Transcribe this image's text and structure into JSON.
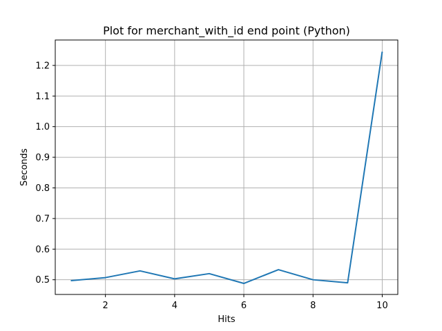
{
  "chart_data": {
    "type": "line",
    "title": "Plot for merchant_with_id end point (Python)",
    "xlabel": "Hits",
    "ylabel": "Seconds",
    "x": [
      1,
      2,
      3,
      4,
      5,
      6,
      7,
      8,
      9,
      10
    ],
    "series": [
      {
        "values": [
          0.497,
          0.507,
          0.529,
          0.503,
          0.52,
          0.488,
          0.533,
          0.5,
          0.49,
          1.245
        ]
      }
    ],
    "xlim": [
      0.55,
      10.45
    ],
    "ylim": [
      0.452,
      1.283
    ],
    "xticks": [
      2,
      4,
      6,
      8,
      10
    ],
    "yticks": [
      0.5,
      0.6,
      0.7,
      0.8,
      0.9,
      1.0,
      1.1,
      1.2
    ],
    "xtick_labels": [
      "2",
      "4",
      "6",
      "8",
      "10"
    ],
    "ytick_labels": [
      "0.5",
      "0.6",
      "0.7",
      "0.8",
      "0.9",
      "1.0",
      "1.1",
      "1.2"
    ],
    "grid": true,
    "colors": {
      "series": "#1f77b4",
      "grid": "#b0b0b0",
      "axes": "#000000"
    }
  }
}
